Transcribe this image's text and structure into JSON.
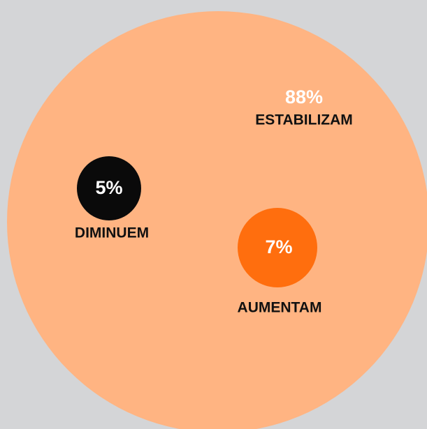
{
  "chart_data": {
    "type": "bubble",
    "categories": [
      "ESTABILIZAM",
      "DIMINUEM",
      "AUMENTAM"
    ],
    "values": [
      88,
      5,
      7
    ],
    "value_labels": [
      "88%",
      "5%",
      "7%"
    ],
    "colors": [
      "#ffb482",
      "#0a0a0a",
      "#ff6e0e"
    ]
  }
}
